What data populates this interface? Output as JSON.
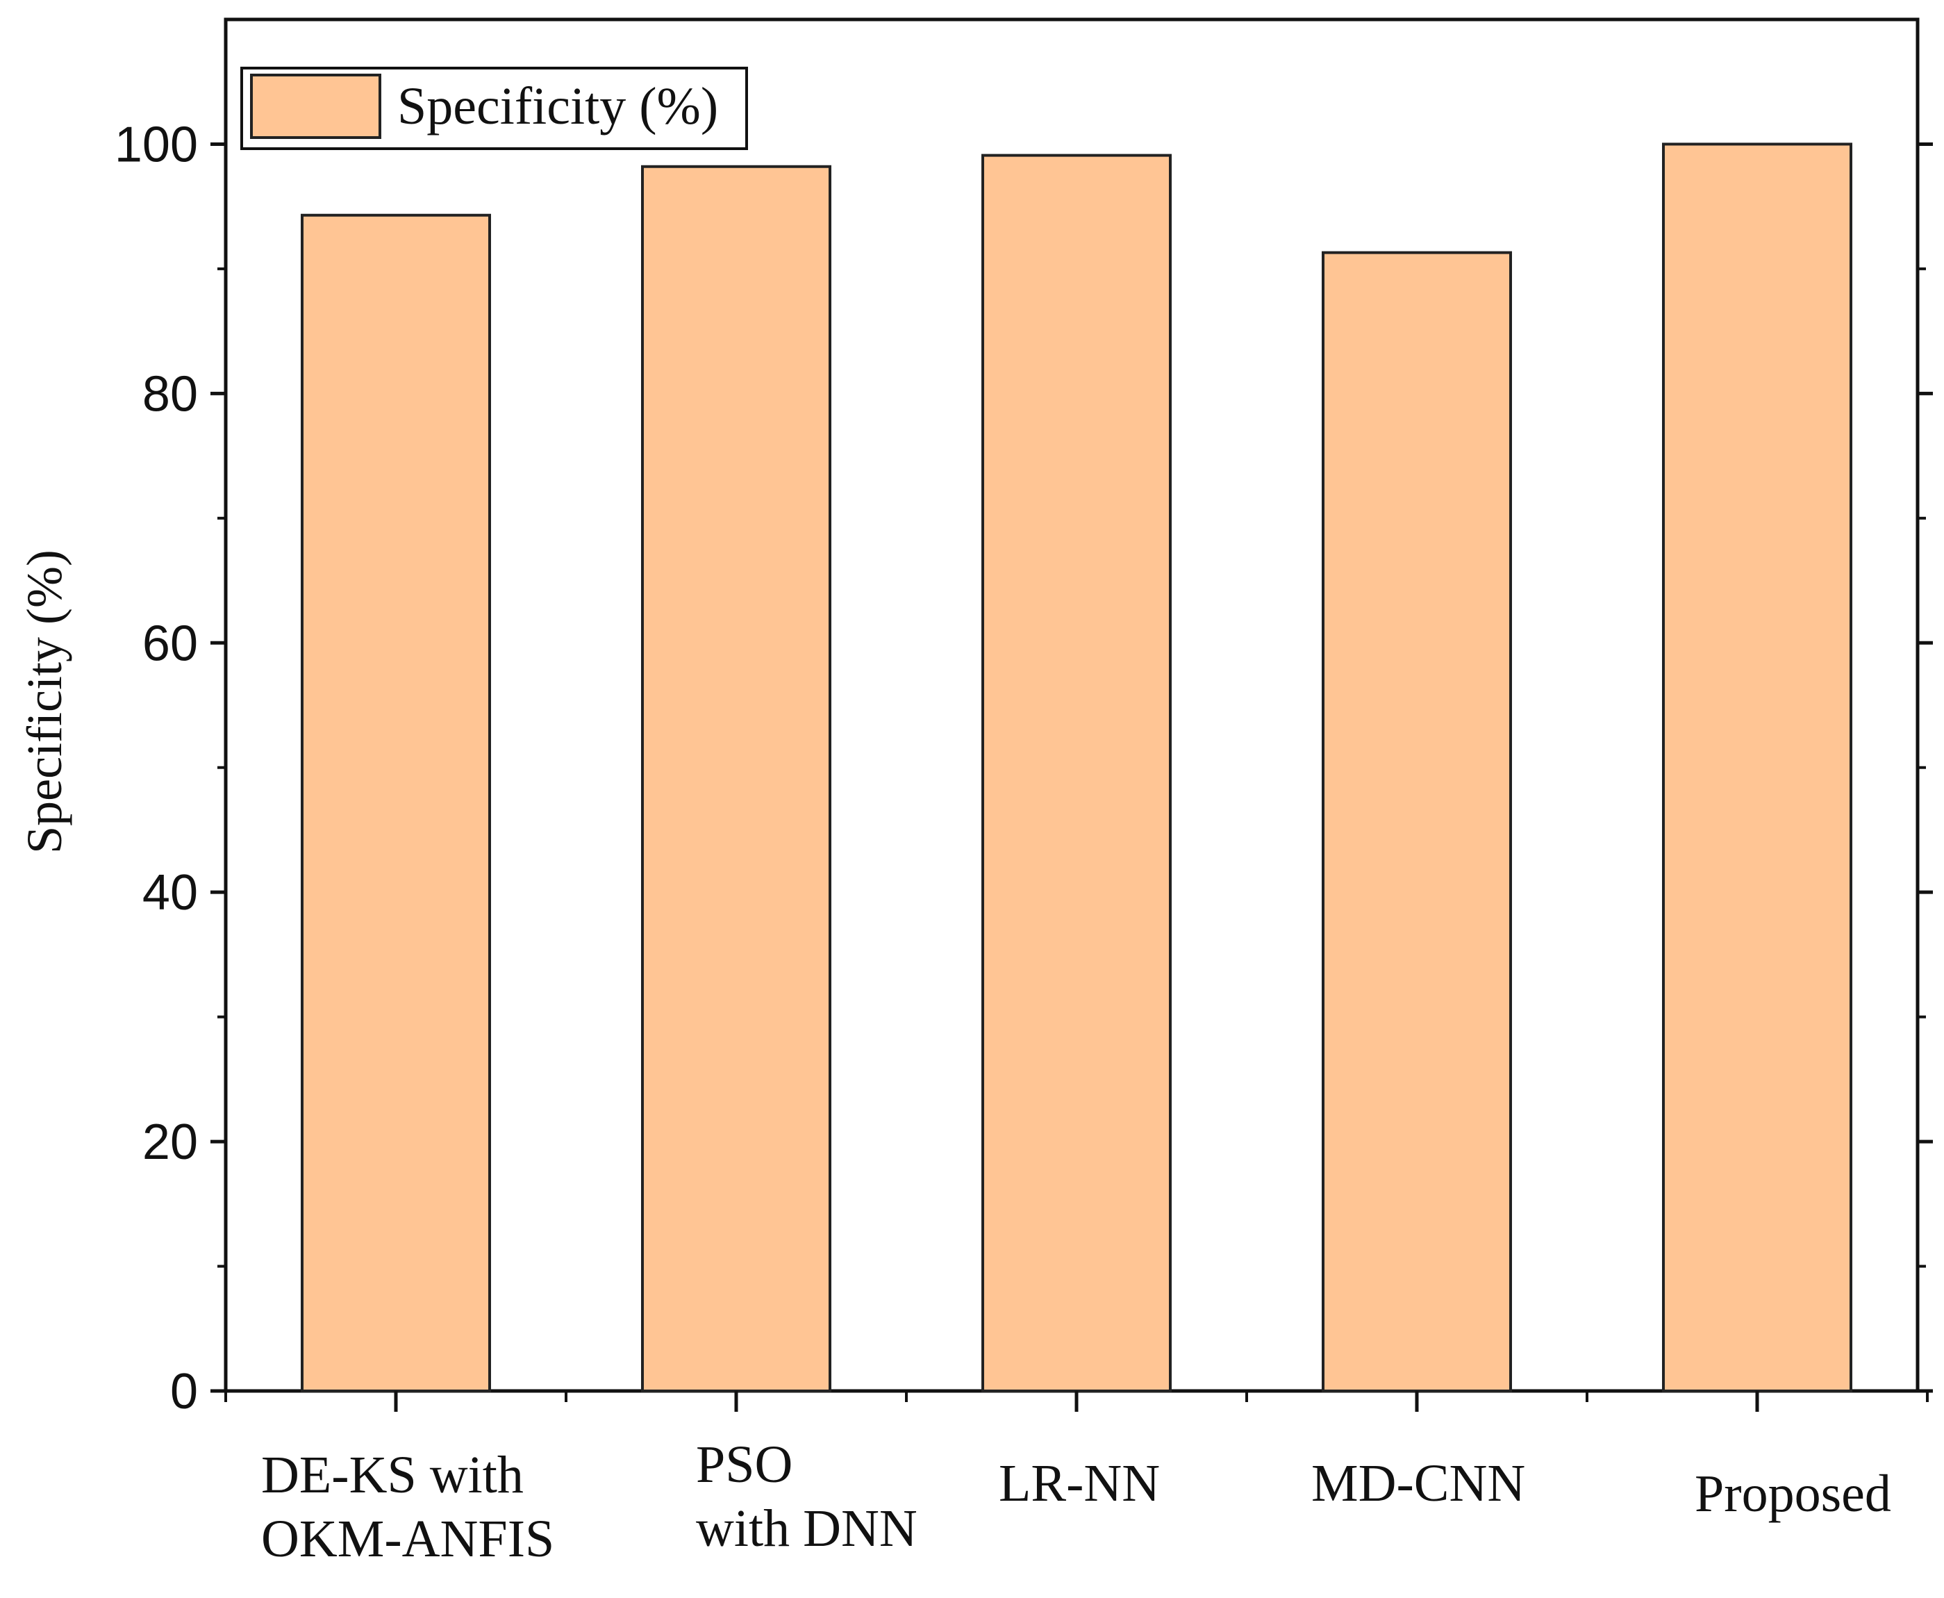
{
  "chart_data": {
    "type": "bar",
    "categories": [
      [
        "DE-KS with",
        "OKM-ANFIS"
      ],
      [
        "PSO",
        "with DNN"
      ],
      [
        "LR-NN"
      ],
      [
        "MD-CNN"
      ],
      [
        "Proposed"
      ]
    ],
    "series": [
      {
        "name": "Specificity (%)",
        "values": [
          94.3,
          98.2,
          99.1,
          91.3,
          100
        ]
      }
    ],
    "title": "",
    "xlabel": "",
    "ylabel": "Specificity (%)",
    "ylim": [
      0,
      110
    ],
    "yticks": [
      0,
      20,
      40,
      60,
      80,
      100
    ],
    "legend": {
      "label": "Specificity (%)",
      "position": "top-left"
    },
    "bar_color": "#FFC594",
    "bar_edge_color": "#222222"
  }
}
